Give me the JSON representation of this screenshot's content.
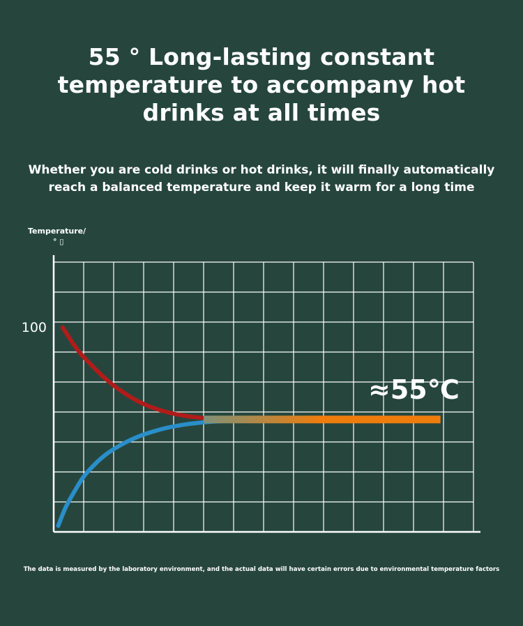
{
  "heading": {
    "line1": "55 ° Long-lasting constant",
    "line2": "temperature to accompany hot",
    "line3": "drinks at all times"
  },
  "subheading": {
    "line1": "Whether you are cold drinks or hot drinks, it will finally automatically",
    "line2": "reach a balanced temperature and keep it warm for a long time"
  },
  "footnote": "The data is measured by the laboratory environment, and the actual data will have certain errors due to environmental temperature factors",
  "chart_data": {
    "type": "line",
    "ylabel_line1": "Temperature/",
    "ylabel_line2": "° ▯",
    "ytick_label": "100",
    "ytick_value": 100,
    "ylim": [
      0,
      132
    ],
    "xlim": [
      0,
      14
    ],
    "grid": true,
    "annotation": "≈55℃",
    "equilibrium": 55,
    "colors": {
      "background": "#26463d",
      "grid": "#ffffff",
      "hot": "#b01c1a",
      "cold": "#2a8ec9",
      "warm": "#ee7d0e",
      "teal": "#4f9aa5"
    },
    "series": [
      {
        "color_key": "hot",
        "x": [
          0.3,
          0.8,
          1.3,
          1.8,
          2.3,
          2.8,
          3.3,
          3.8,
          4.3,
          4.8,
          5.3
        ],
        "y": [
          100,
          89,
          81,
          74,
          68.5,
          64,
          60.8,
          58.5,
          57,
          56,
          55.3
        ]
      },
      {
        "color_key": "cold",
        "x": [
          0.15,
          0.4,
          0.7,
          1.0,
          1.4,
          1.8,
          2.3,
          2.8,
          3.3,
          3.8,
          4.5,
          5.3,
          6.5
        ],
        "y": [
          3,
          12,
          20,
          27,
          33.5,
          38.5,
          43,
          46.5,
          49,
          51,
          52.8,
          54,
          54.6
        ]
      },
      {
        "color_key": "warm",
        "x": [
          5.0,
          12.9
        ],
        "y": [
          55,
          55
        ]
      }
    ]
  }
}
